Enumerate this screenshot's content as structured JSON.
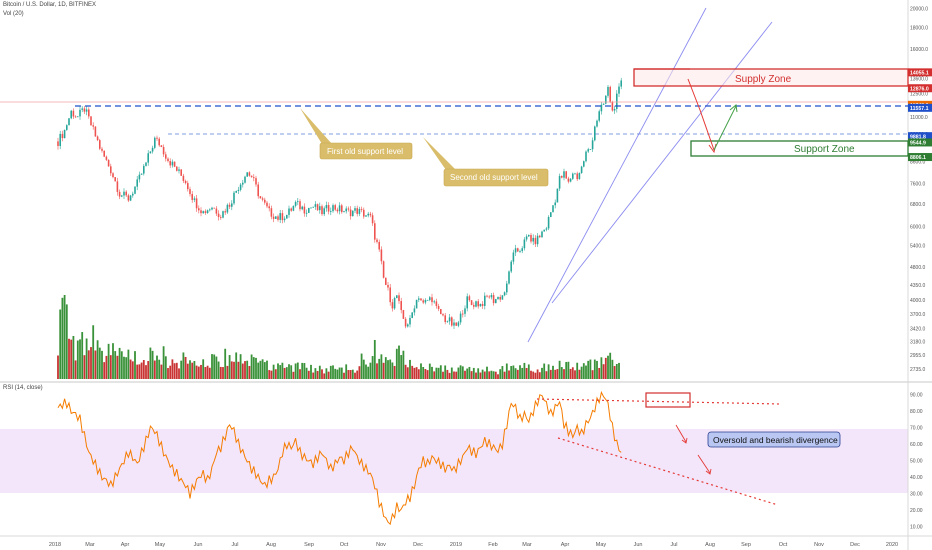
{
  "header": {
    "symbol": "Bitcoin / U.S. Dollar, 1D, BITFINEX",
    "vol_label": "Vol (20)",
    "rsi_label": "RSI (14, close)"
  },
  "colors": {
    "up": "#26a69a",
    "down": "#ef5350",
    "vol_up": "#2e8b2e",
    "vol_down": "#c62828",
    "rsi_line": "#f57c00",
    "rsi_band": "#f3e6fb",
    "trendline": "#8c8cf0",
    "dashed_blue": "#1f4fc9",
    "supply": "#d32f2f",
    "support": "#2e7d32",
    "callout_fill": "#d9bd6a",
    "callout_text": "#ffffff",
    "rsi_note_fill": "#b9c7f2"
  },
  "chart_data": {
    "type": "candlestick",
    "x_ticks": [
      "2018",
      "Mar",
      "Apr",
      "May",
      "Jun",
      "Jul",
      "Aug",
      "Sep",
      "Oct",
      "Nov",
      "Dec",
      "2019",
      "Feb",
      "Mar",
      "Apr",
      "May",
      "Jun",
      "Jul",
      "Aug",
      "Sep",
      "Oct",
      "Nov",
      "Dec",
      "2020"
    ],
    "y_ticks": [
      2735,
      2955,
      3180,
      3420,
      3700,
      4000,
      4350,
      4800,
      5400,
      6000,
      6800,
      7600,
      8600,
      10000,
      11000,
      12500,
      13600,
      14000,
      16000,
      18000,
      20000
    ],
    "y_scale": "log",
    "ylim": [
      2600,
      20500
    ],
    "price_tags": [
      {
        "label": "14055.1",
        "color": "#d32f2f"
      },
      {
        "label": "12876.0",
        "color": "#d32f2f"
      },
      {
        "label": "11748.0",
        "color": "#ef6c00"
      },
      {
        "label": "11557.1",
        "color": "#1f4fc9"
      },
      {
        "label": "9881.8",
        "color": "#1f4fc9"
      },
      {
        "label": "9544.9",
        "color": "#2e7d32"
      },
      {
        "label": "8806.1",
        "color": "#2e7d32"
      }
    ],
    "price_series_close": [
      [
        0,
        9600
      ],
      [
        3,
        10200
      ],
      [
        6,
        11300
      ],
      [
        9,
        11000
      ],
      [
        12,
        11500
      ],
      [
        16,
        10200
      ],
      [
        20,
        9000
      ],
      [
        24,
        8200
      ],
      [
        28,
        7200
      ],
      [
        32,
        7000
      ],
      [
        36,
        7600
      ],
      [
        40,
        8500
      ],
      [
        44,
        9700
      ],
      [
        46,
        9500
      ],
      [
        50,
        8700
      ],
      [
        54,
        8200
      ],
      [
        58,
        7700
      ],
      [
        62,
        6900
      ],
      [
        66,
        6500
      ],
      [
        70,
        6700
      ],
      [
        74,
        6400
      ],
      [
        78,
        6800
      ],
      [
        82,
        7500
      ],
      [
        86,
        8100
      ],
      [
        88,
        7900
      ],
      [
        92,
        7000
      ],
      [
        96,
        6500
      ],
      [
        100,
        6300
      ],
      [
        104,
        6400
      ],
      [
        108,
        6800
      ],
      [
        112,
        6600
      ],
      [
        116,
        6700
      ],
      [
        120,
        6500
      ],
      [
        124,
        6700
      ],
      [
        128,
        6600
      ],
      [
        132,
        6500
      ],
      [
        136,
        6550
      ],
      [
        140,
        6400
      ],
      [
        142,
        6300
      ],
      [
        144,
        5700
      ],
      [
        146,
        5200
      ],
      [
        148,
        4500
      ],
      [
        150,
        4200
      ],
      [
        152,
        3900
      ],
      [
        154,
        4100
      ],
      [
        156,
        3700
      ],
      [
        158,
        3500
      ],
      [
        160,
        3550
      ],
      [
        162,
        3900
      ],
      [
        164,
        4100
      ],
      [
        166,
        3900
      ],
      [
        168,
        4000
      ],
      [
        170,
        4050
      ],
      [
        172,
        3800
      ],
      [
        174,
        3700
      ],
      [
        176,
        3600
      ],
      [
        178,
        3550
      ],
      [
        180,
        3450
      ],
      [
        182,
        3500
      ],
      [
        184,
        3800
      ],
      [
        186,
        4000
      ],
      [
        188,
        3900
      ],
      [
        190,
        3950
      ],
      [
        192,
        3900
      ],
      [
        194,
        4000
      ],
      [
        196,
        4100
      ],
      [
        198,
        4000
      ],
      [
        200,
        4050
      ],
      [
        202,
        4100
      ],
      [
        204,
        4300
      ],
      [
        206,
        5000
      ],
      [
        208,
        5200
      ],
      [
        210,
        5300
      ],
      [
        212,
        5500
      ],
      [
        214,
        5700
      ],
      [
        216,
        5500
      ],
      [
        218,
        5600
      ],
      [
        220,
        5800
      ],
      [
        222,
        6000
      ],
      [
        224,
        6500
      ],
      [
        226,
        7000
      ],
      [
        228,
        7800
      ],
      [
        230,
        8000
      ],
      [
        232,
        7600
      ],
      [
        234,
        8100
      ],
      [
        236,
        7900
      ],
      [
        238,
        8300
      ],
      [
        240,
        9000
      ],
      [
        242,
        9200
      ],
      [
        244,
        10500
      ],
      [
        246,
        11200
      ],
      [
        248,
        11800
      ],
      [
        250,
        12800
      ],
      [
        252,
        11300
      ],
      [
        254,
        12200
      ],
      [
        256,
        13200
      ]
    ],
    "volume_relative": [
      [
        0,
        0.45
      ],
      [
        2,
        0.75
      ],
      [
        4,
        0.55
      ],
      [
        6,
        0.5
      ],
      [
        8,
        0.35
      ],
      [
        10,
        0.4
      ],
      [
        12,
        0.3
      ],
      [
        14,
        0.35
      ],
      [
        16,
        0.45
      ],
      [
        18,
        0.3
      ],
      [
        20,
        0.25
      ],
      [
        22,
        0.3
      ],
      [
        24,
        0.35
      ],
      [
        26,
        0.25
      ],
      [
        28,
        0.3
      ],
      [
        30,
        0.2
      ],
      [
        32,
        0.25
      ],
      [
        34,
        0.3
      ],
      [
        36,
        0.2
      ],
      [
        38,
        0.25
      ],
      [
        40,
        0.2
      ],
      [
        42,
        0.3
      ],
      [
        44,
        0.25
      ],
      [
        46,
        0.2
      ],
      [
        48,
        0.25
      ],
      [
        50,
        0.2
      ],
      [
        52,
        0.22
      ],
      [
        54,
        0.18
      ],
      [
        56,
        0.2
      ],
      [
        58,
        0.25
      ],
      [
        60,
        0.2
      ],
      [
        62,
        0.18
      ],
      [
        64,
        0.22
      ],
      [
        66,
        0.2
      ],
      [
        68,
        0.18
      ],
      [
        70,
        0.22
      ],
      [
        72,
        0.2
      ],
      [
        74,
        0.18
      ],
      [
        76,
        0.22
      ],
      [
        78,
        0.2
      ],
      [
        80,
        0.25
      ],
      [
        82,
        0.2
      ],
      [
        84,
        0.22
      ],
      [
        86,
        0.2
      ],
      [
        88,
        0.18
      ],
      [
        90,
        0.16
      ],
      [
        92,
        0.18
      ],
      [
        94,
        0.15
      ],
      [
        96,
        0.16
      ],
      [
        98,
        0.14
      ],
      [
        100,
        0.15
      ],
      [
        102,
        0.14
      ],
      [
        104,
        0.13
      ],
      [
        106,
        0.14
      ],
      [
        108,
        0.12
      ],
      [
        110,
        0.13
      ],
      [
        112,
        0.12
      ],
      [
        114,
        0.11
      ],
      [
        116,
        0.12
      ],
      [
        118,
        0.1
      ],
      [
        120,
        0.11
      ],
      [
        122,
        0.1
      ],
      [
        124,
        0.12
      ],
      [
        126,
        0.1
      ],
      [
        128,
        0.1
      ],
      [
        130,
        0.12
      ],
      [
        132,
        0.11
      ],
      [
        134,
        0.1
      ],
      [
        136,
        0.12
      ],
      [
        138,
        0.28
      ],
      [
        140,
        0.14
      ],
      [
        142,
        0.12
      ],
      [
        144,
        0.3
      ],
      [
        146,
        0.22
      ],
      [
        148,
        0.28
      ],
      [
        150,
        0.2
      ],
      [
        152,
        0.18
      ],
      [
        154,
        0.3
      ],
      [
        156,
        0.22
      ],
      [
        158,
        0.2
      ],
      [
        160,
        0.18
      ],
      [
        162,
        0.15
      ],
      [
        164,
        0.14
      ],
      [
        166,
        0.12
      ],
      [
        168,
        0.13
      ],
      [
        170,
        0.12
      ],
      [
        172,
        0.11
      ],
      [
        174,
        0.1
      ],
      [
        176,
        0.1
      ],
      [
        178,
        0.1
      ],
      [
        180,
        0.09
      ],
      [
        182,
        0.1
      ],
      [
        184,
        0.11
      ],
      [
        186,
        0.1
      ],
      [
        188,
        0.09
      ],
      [
        190,
        0.09
      ],
      [
        192,
        0.1
      ],
      [
        194,
        0.09
      ],
      [
        196,
        0.09
      ],
      [
        198,
        0.08
      ],
      [
        200,
        0.09
      ],
      [
        202,
        0.1
      ],
      [
        204,
        0.12
      ],
      [
        206,
        0.14
      ],
      [
        208,
        0.1
      ],
      [
        210,
        0.11
      ],
      [
        212,
        0.12
      ],
      [
        214,
        0.13
      ],
      [
        216,
        0.12
      ],
      [
        218,
        0.11
      ],
      [
        220,
        0.12
      ],
      [
        222,
        0.13
      ],
      [
        224,
        0.14
      ],
      [
        226,
        0.15
      ],
      [
        228,
        0.14
      ],
      [
        230,
        0.12
      ],
      [
        232,
        0.13
      ],
      [
        234,
        0.14
      ],
      [
        236,
        0.12
      ],
      [
        238,
        0.13
      ],
      [
        240,
        0.14
      ],
      [
        242,
        0.15
      ],
      [
        244,
        0.18
      ],
      [
        246,
        0.16
      ],
      [
        248,
        0.22
      ],
      [
        250,
        0.25
      ],
      [
        252,
        0.2
      ],
      [
        254,
        0.15
      ],
      [
        256,
        0.12
      ]
    ],
    "rsi_y_ticks": [
      10,
      20,
      30,
      40,
      50,
      60,
      70,
      80,
      90
    ],
    "rsi_ylim": [
      5,
      97
    ],
    "rsi_band": [
      30,
      70
    ],
    "rsi_series": [
      [
        0,
        82
      ],
      [
        2,
        84
      ],
      [
        4,
        85
      ],
      [
        6,
        80
      ],
      [
        8,
        78
      ],
      [
        10,
        75
      ],
      [
        12,
        65
      ],
      [
        14,
        55
      ],
      [
        16,
        50
      ],
      [
        18,
        45
      ],
      [
        20,
        40
      ],
      [
        22,
        38
      ],
      [
        24,
        35
      ],
      [
        26,
        40
      ],
      [
        28,
        45
      ],
      [
        30,
        50
      ],
      [
        32,
        55
      ],
      [
        34,
        52
      ],
      [
        36,
        48
      ],
      [
        38,
        55
      ],
      [
        40,
        62
      ],
      [
        42,
        70
      ],
      [
        44,
        68
      ],
      [
        46,
        62
      ],
      [
        48,
        55
      ],
      [
        50,
        50
      ],
      [
        52,
        45
      ],
      [
        54,
        42
      ],
      [
        56,
        38
      ],
      [
        58,
        35
      ],
      [
        60,
        30
      ],
      [
        62,
        35
      ],
      [
        64,
        40
      ],
      [
        66,
        42
      ],
      [
        68,
        38
      ],
      [
        70,
        45
      ],
      [
        72,
        55
      ],
      [
        74,
        58
      ],
      [
        76,
        65
      ],
      [
        78,
        72
      ],
      [
        80,
        68
      ],
      [
        82,
        60
      ],
      [
        84,
        55
      ],
      [
        86,
        50
      ],
      [
        88,
        45
      ],
      [
        90,
        42
      ],
      [
        92,
        38
      ],
      [
        94,
        35
      ],
      [
        96,
        38
      ],
      [
        98,
        40
      ],
      [
        100,
        45
      ],
      [
        102,
        55
      ],
      [
        104,
        60
      ],
      [
        106,
        58
      ],
      [
        108,
        62
      ],
      [
        110,
        55
      ],
      [
        112,
        52
      ],
      [
        114,
        50
      ],
      [
        116,
        48
      ],
      [
        118,
        52
      ],
      [
        120,
        55
      ],
      [
        122,
        50
      ],
      [
        124,
        45
      ],
      [
        126,
        48
      ],
      [
        128,
        52
      ],
      [
        130,
        50
      ],
      [
        132,
        55
      ],
      [
        134,
        58
      ],
      [
        136,
        52
      ],
      [
        138,
        48
      ],
      [
        140,
        45
      ],
      [
        142,
        42
      ],
      [
        144,
        35
      ],
      [
        146,
        25
      ],
      [
        148,
        18
      ],
      [
        150,
        12
      ],
      [
        152,
        15
      ],
      [
        154,
        22
      ],
      [
        156,
        20
      ],
      [
        158,
        25
      ],
      [
        160,
        28
      ],
      [
        162,
        35
      ],
      [
        164,
        45
      ],
      [
        166,
        50
      ],
      [
        168,
        48
      ],
      [
        170,
        52
      ],
      [
        172,
        50
      ],
      [
        174,
        48
      ],
      [
        176,
        45
      ],
      [
        178,
        47
      ],
      [
        180,
        44
      ],
      [
        182,
        48
      ],
      [
        184,
        52
      ],
      [
        186,
        58
      ],
      [
        188,
        56
      ],
      [
        190,
        54
      ],
      [
        192,
        58
      ],
      [
        194,
        62
      ],
      [
        196,
        60
      ],
      [
        198,
        58
      ],
      [
        200,
        56
      ],
      [
        202,
        60
      ],
      [
        204,
        72
      ],
      [
        206,
        85
      ],
      [
        208,
        82
      ],
      [
        210,
        75
      ],
      [
        212,
        78
      ],
      [
        214,
        74
      ],
      [
        216,
        80
      ],
      [
        218,
        86
      ],
      [
        220,
        90
      ],
      [
        222,
        84
      ],
      [
        224,
        78
      ],
      [
        226,
        82
      ],
      [
        228,
        86
      ],
      [
        230,
        72
      ],
      [
        232,
        68
      ],
      [
        234,
        65
      ],
      [
        236,
        70
      ],
      [
        238,
        66
      ],
      [
        240,
        72
      ],
      [
        242,
        76
      ],
      [
        244,
        82
      ],
      [
        246,
        88
      ],
      [
        248,
        90
      ],
      [
        250,
        84
      ],
      [
        252,
        70
      ],
      [
        254,
        60
      ],
      [
        256,
        55
      ]
    ],
    "annotations": {
      "supply_zone": "Supply Zone",
      "support_zone": "Support Zone",
      "first_support": "First old support level",
      "second_support": "Second old support level",
      "rsi_note": "Oversold and bearish divergence"
    }
  }
}
